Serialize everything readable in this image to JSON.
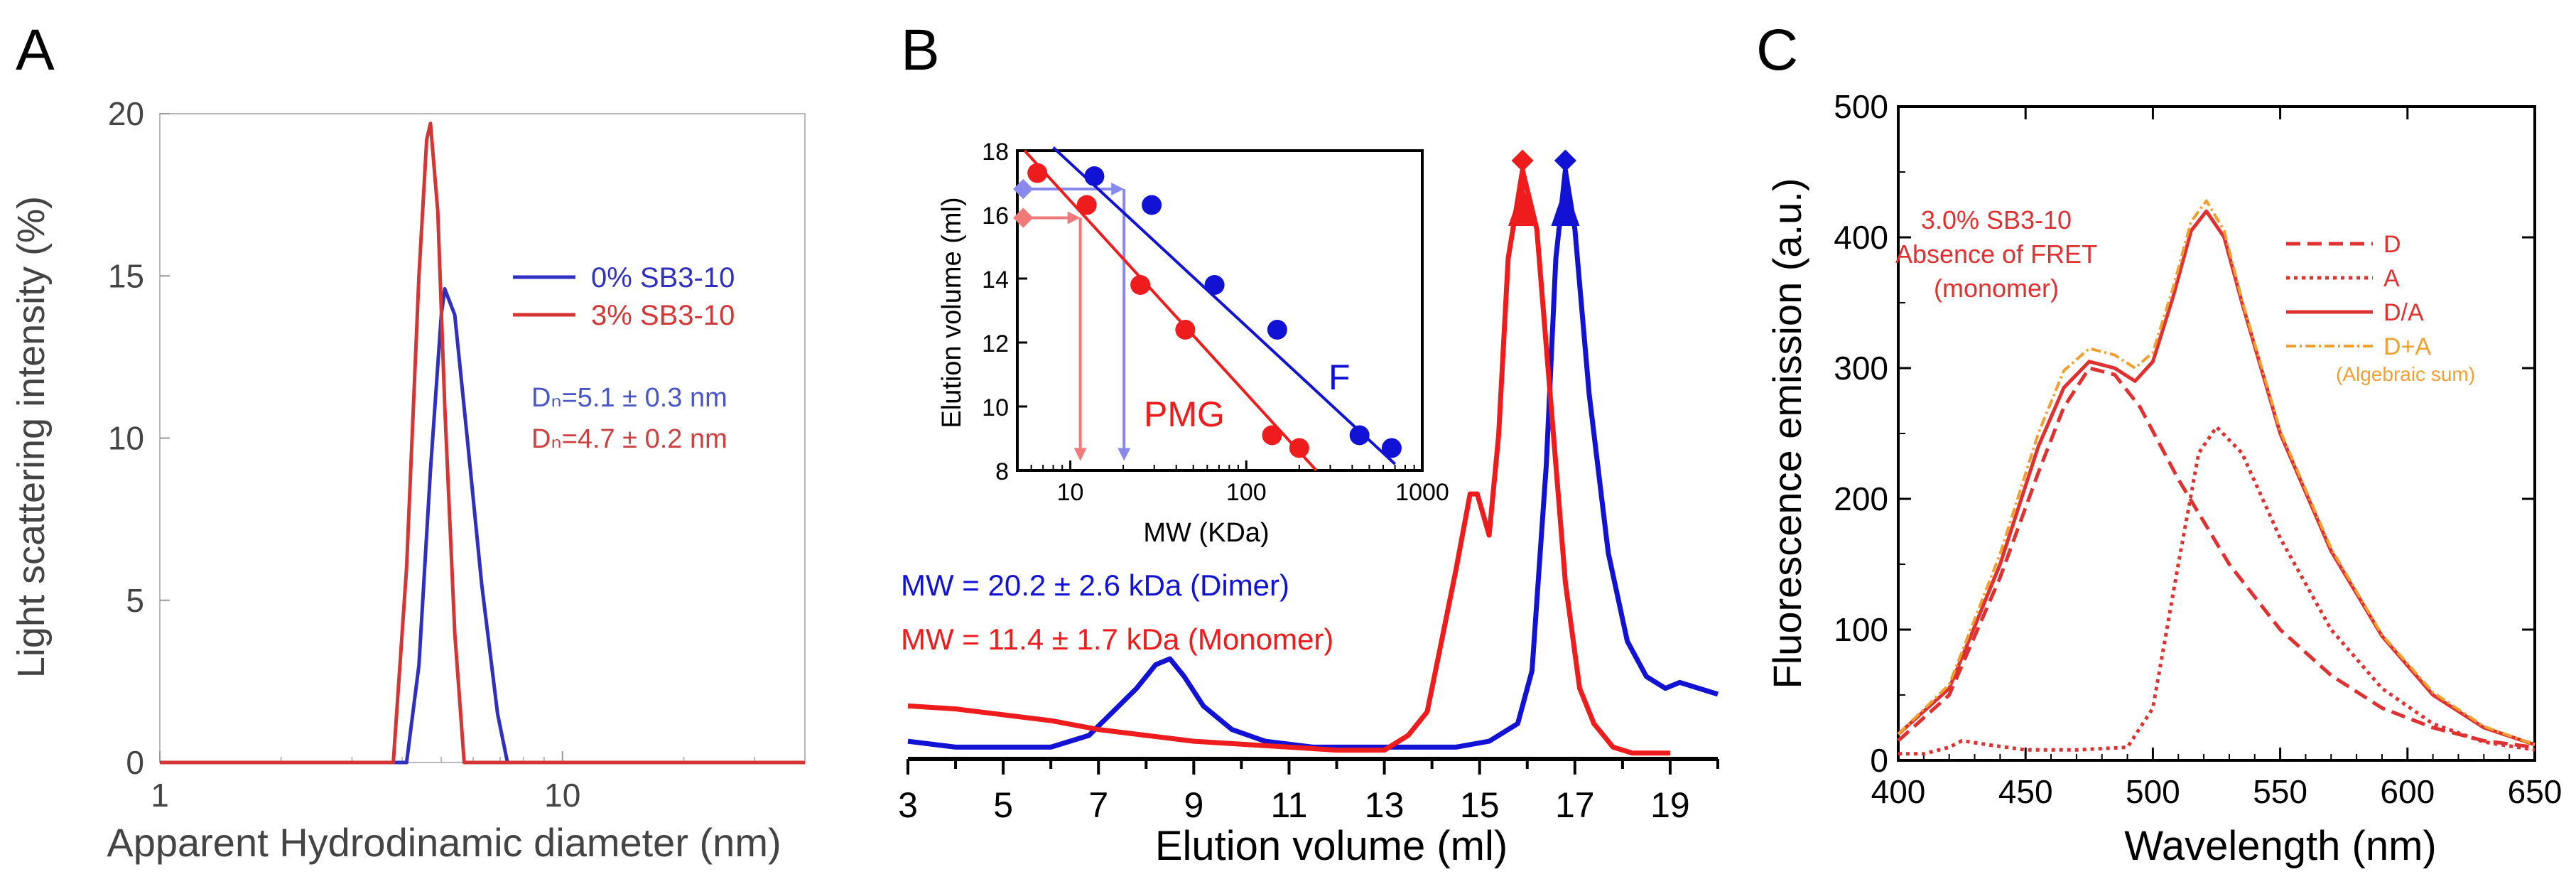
{
  "panel_labels": [
    "A",
    "B",
    "C"
  ],
  "chart_data": [
    {
      "type": "line",
      "panel": "A",
      "xscale": "log",
      "xlabel": "Apparent Hydrodinamic diameter (nm)",
      "ylabel": "Light scattering intensity (%)",
      "xlim": [
        1,
        40
      ],
      "ylim": [
        0,
        20
      ],
      "x_ticks": [
        1,
        10
      ],
      "x_tick_labels": [
        "1",
        "10"
      ],
      "y_ticks": [
        0,
        5,
        10,
        15,
        20
      ],
      "y_tick_labels": [
        "0",
        "5",
        "10",
        "15",
        "20"
      ],
      "series": [
        {
          "name": "0% SB3-10",
          "color": "#2f2fc0",
          "x": [
            1,
            4.1,
            4.4,
            4.7,
            5.0,
            5.1,
            5.4,
            5.8,
            6.3,
            6.9,
            7.3,
            40
          ],
          "y": [
            0,
            0,
            3,
            9,
            13.8,
            14.6,
            13.8,
            10,
            5.5,
            1.5,
            0,
            0
          ]
        },
        {
          "name": "3% SB3-10",
          "color": "#d43535",
          "x": [
            1,
            3.8,
            4.1,
            4.4,
            4.6,
            4.7,
            4.9,
            5.1,
            5.4,
            5.7,
            40
          ],
          "y": [
            0,
            0,
            6,
            15,
            19.2,
            19.7,
            17,
            11,
            4,
            0,
            0
          ]
        }
      ],
      "annotations": [
        {
          "text": "Dₙ=5.1 ± 0.3 nm",
          "color": "#4a55c8"
        },
        {
          "text": "Dₙ=4.7 ± 0.2 nm",
          "color": "#cc4040"
        }
      ]
    },
    {
      "type": "line",
      "panel": "B",
      "xlabel": "Elution volume (ml)",
      "xlim": [
        3,
        20
      ],
      "ylim": [
        0,
        1.12
      ],
      "x_ticks": [
        3,
        5,
        7,
        9,
        11,
        13,
        15,
        17,
        19
      ],
      "x_tick_labels": [
        "3",
        "5",
        "7",
        "9",
        "11",
        "13",
        "15",
        "17",
        "19"
      ],
      "series": [
        {
          "name": "Dimer",
          "color": "#1212d4",
          "x": [
            3,
            4,
            5,
            6,
            6.8,
            7.3,
            7.8,
            8.2,
            8.5,
            8.8,
            9.2,
            9.8,
            10.5,
            11.5,
            12.5,
            13.5,
            14.5,
            15.2,
            15.8,
            16.1,
            16.4,
            16.6,
            16.8,
            17.0,
            17.3,
            17.7,
            18.1,
            18.5,
            18.9,
            19.2,
            19.6,
            20
          ],
          "y": [
            0.03,
            0.02,
            0.02,
            0.02,
            0.04,
            0.08,
            0.12,
            0.16,
            0.17,
            0.14,
            0.09,
            0.05,
            0.03,
            0.02,
            0.02,
            0.02,
            0.02,
            0.03,
            0.06,
            0.15,
            0.5,
            0.85,
            1.0,
            0.9,
            0.62,
            0.35,
            0.2,
            0.14,
            0.12,
            0.13,
            0.12,
            0.11
          ]
        },
        {
          "name": "Monomer",
          "color": "#ee1c1c",
          "x": [
            3,
            4,
            5,
            6,
            7,
            8,
            9,
            10,
            11,
            12,
            13,
            13.5,
            13.9,
            14.2,
            14.5,
            14.8,
            14.95,
            15.2,
            15.4,
            15.6,
            15.9,
            16.2,
            16.5,
            16.8,
            17.1,
            17.4,
            17.8,
            18.2,
            19
          ],
          "y": [
            0.09,
            0.085,
            0.075,
            0.065,
            0.05,
            0.04,
            0.03,
            0.025,
            0.02,
            0.015,
            0.015,
            0.04,
            0.08,
            0.2,
            0.32,
            0.45,
            0.45,
            0.38,
            0.55,
            0.85,
            1.0,
            0.9,
            0.6,
            0.3,
            0.12,
            0.06,
            0.02,
            0.01,
            0.01
          ]
        }
      ],
      "markers": [
        {
          "name": "peak-arrow-monomer",
          "x": 15.9,
          "color": "#ee1c1c"
        },
        {
          "name": "peak-arrow-dimer",
          "x": 16.8,
          "color": "#1212d4"
        }
      ],
      "annotations": [
        {
          "text": "MW = 20.2 ± 2.6 kDa (Dimer)",
          "color": "#1212d4"
        },
        {
          "text": "MW = 11.4 ± 1.7 kDa (Monomer)",
          "color": "#ee1c1c"
        }
      ],
      "inset": {
        "type": "scatter",
        "xscale": "log",
        "xlabel": "MW (KDa)",
        "ylabel": "Elution volume (ml)",
        "xlim": [
          5,
          1000
        ],
        "ylim": [
          8,
          18
        ],
        "x_ticks": [
          10,
          100,
          1000
        ],
        "x_tick_labels": [
          "10",
          "100",
          "1000"
        ],
        "y_ticks": [
          8,
          10,
          12,
          14,
          16,
          18
        ],
        "y_tick_labels": [
          "8",
          "10",
          "12",
          "14",
          "16",
          "18"
        ],
        "series": [
          {
            "name": "F",
            "color": "#1212d4",
            "x": [
              13.7,
              29,
              66,
              150,
              440,
              670
            ],
            "y": [
              17.2,
              16.3,
              13.8,
              12.4,
              9.1,
              8.7
            ],
            "fit_x": [
              8,
              700
            ],
            "fit_y": [
              18.1,
              8.2
            ]
          },
          {
            "name": "PMG",
            "color": "#ee1c1c",
            "x": [
              6.5,
              12.4,
              25,
              45,
              140,
              200
            ],
            "y": [
              17.3,
              16.3,
              13.8,
              12.4,
              9.1,
              8.7
            ],
            "fit_x": [
              5.5,
              250
            ],
            "fit_y": [
              18.0,
              8.0
            ]
          }
        ],
        "guides": [
          {
            "name": "dimer-guide",
            "color": "#8888ee",
            "y": 16.8,
            "x": 20.2
          },
          {
            "name": "monomer-guide",
            "color": "#f07a7a",
            "y": 15.9,
            "x": 11.4
          }
        ]
      }
    },
    {
      "type": "line",
      "panel": "C",
      "xlabel": "Wavelength (nm)",
      "ylabel": "Fluorescence emission (a.u.)",
      "xlim": [
        400,
        650
      ],
      "ylim": [
        0,
        500
      ],
      "x_ticks": [
        400,
        450,
        500,
        550,
        600,
        650
      ],
      "x_tick_labels": [
        "400",
        "450",
        "500",
        "550",
        "600",
        "650"
      ],
      "y_ticks": [
        0,
        100,
        200,
        300,
        400,
        500
      ],
      "y_tick_labels": [
        "0",
        "100",
        "200",
        "300",
        "400",
        "500"
      ],
      "annotation_lines": [
        "3.0% SB3-10",
        "Absence of FRET",
        "(monomer)"
      ],
      "annotation_color": "#e03030",
      "legend_note": "(Algebraic sum)",
      "series": [
        {
          "name": "D",
          "color": "#e03030",
          "dash": "20,10",
          "x": [
            400,
            420,
            440,
            455,
            465,
            475,
            485,
            495,
            510,
            530,
            550,
            570,
            590,
            610,
            630,
            650
          ],
          "y": [
            15,
            50,
            140,
            220,
            270,
            300,
            295,
            270,
            215,
            150,
            100,
            65,
            40,
            25,
            15,
            10
          ]
        },
        {
          "name": "A",
          "color": "#e03030",
          "dash": "5,6",
          "x": [
            400,
            410,
            420,
            425,
            435,
            450,
            470,
            490,
            500,
            510,
            518,
            525,
            535,
            550,
            570,
            590,
            610,
            630,
            650
          ],
          "y": [
            5,
            5,
            10,
            15,
            12,
            8,
            8,
            10,
            40,
            150,
            235,
            255,
            235,
            170,
            100,
            55,
            28,
            14,
            8
          ]
        },
        {
          "name": "D/A",
          "color": "#e03030",
          "dash": "",
          "x": [
            400,
            420,
            440,
            455,
            465,
            475,
            485,
            493,
            500,
            508,
            515,
            521,
            528,
            535,
            550,
            570,
            590,
            610,
            630,
            650
          ],
          "y": [
            20,
            55,
            150,
            240,
            285,
            305,
            300,
            290,
            305,
            355,
            405,
            420,
            400,
            350,
            250,
            160,
            95,
            50,
            25,
            12
          ]
        },
        {
          "name": "D+A",
          "color": "#f0a030",
          "dash": "14,5,3,5",
          "x": [
            400,
            420,
            440,
            455,
            465,
            475,
            485,
            493,
            500,
            508,
            515,
            521,
            528,
            535,
            550,
            570,
            590,
            610,
            630,
            650
          ],
          "y": [
            20,
            58,
            158,
            250,
            298,
            315,
            310,
            300,
            312,
            362,
            412,
            428,
            405,
            352,
            252,
            162,
            96,
            52,
            26,
            12
          ]
        }
      ]
    }
  ]
}
